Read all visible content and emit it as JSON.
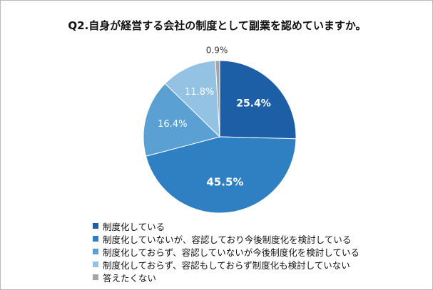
{
  "chart_data": {
    "type": "pie",
    "title": "Q2.自身が経営する会社の制度として副業を認めていますか。",
    "slices": [
      {
        "label": "制度化している",
        "value": 25.4,
        "value_text": "25.4%",
        "color": "#1c5fa6"
      },
      {
        "label": "制度化していないが、容認しており今後制度化を検討している",
        "value": 45.5,
        "value_text": "45.5%",
        "color": "#2e80c2"
      },
      {
        "label": "制度化しておらず、容認していないが今後制度化を検討している",
        "value": 16.4,
        "value_text": "16.4%",
        "color": "#5ba0d2"
      },
      {
        "label": "制度化しておらず、容認もしておらず制度化も検討していない",
        "value": 11.8,
        "value_text": "11.8%",
        "color": "#93c2e3"
      },
      {
        "label": "答えたくない",
        "value": 0.9,
        "value_text": "0.9%",
        "color": "#a6a6a6"
      }
    ],
    "legend_position": "bottom-left"
  }
}
